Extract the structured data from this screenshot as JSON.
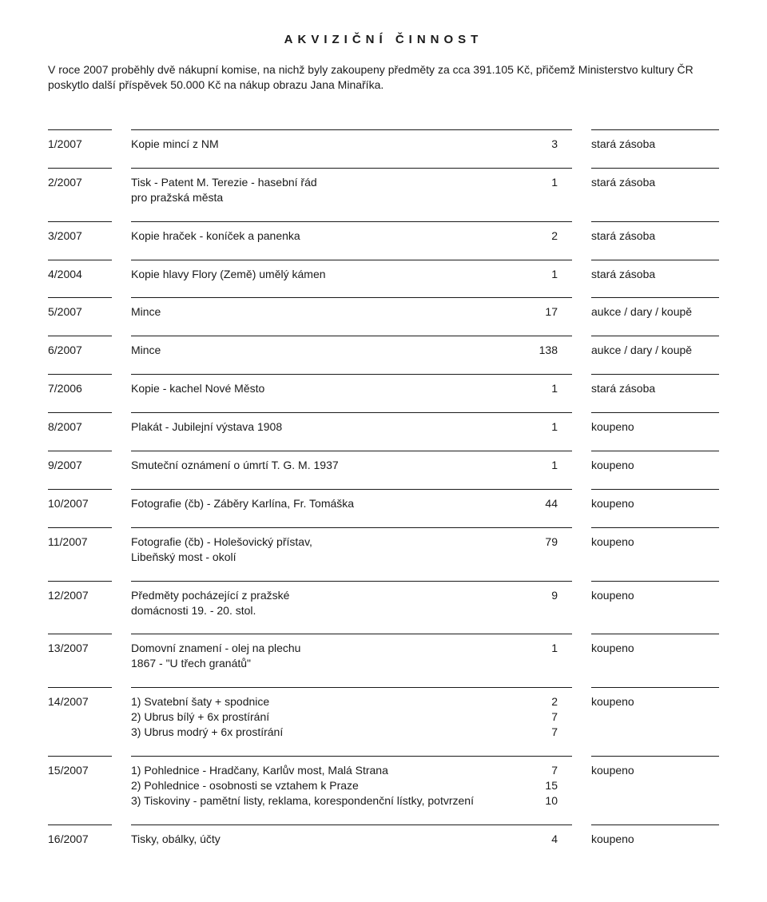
{
  "heading": "AKVIZIČNÍ ČINNOST",
  "intro": "V roce 2007 proběhly dvě nákupní komise, na nichž byly zakoupeny předměty za cca 391.105 Kč, přičemž Ministerstvo kultury ČR poskytlo další příspěvek 50.000 Kč na nákup obrazu Jana Minaříka.",
  "rows": [
    {
      "id": "1/2007",
      "line1": "Kopie mincí z NM",
      "qty1": "3",
      "status": "stará zásoba"
    },
    {
      "id": "2/2007",
      "line1": "Tisk - Patent M. Terezie - hasební řád",
      "qty1": "1",
      "line2": "pro pražská města",
      "status": "stará zásoba"
    },
    {
      "id": "3/2007",
      "line1": "Kopie hraček - koníček a panenka",
      "qty1": "2",
      "status": "stará zásoba"
    },
    {
      "id": "4/2004",
      "line1": "Kopie hlavy Flory (Země) umělý kámen",
      "qty1": "1",
      "status": "stará zásoba"
    },
    {
      "id": "5/2007",
      "line1": "Mince",
      "qty1": "17",
      "status": "aukce / dary / koupě"
    },
    {
      "id": "6/2007",
      "line1": "Mince",
      "qty1": "138",
      "status": "aukce / dary / koupě"
    },
    {
      "id": "7/2006",
      "line1": "Kopie - kachel Nové Město",
      "qty1": "1",
      "status": "stará zásoba"
    },
    {
      "id": "8/2007",
      "line1": "Plakát - Jubilejní výstava 1908",
      "qty1": "1",
      "status": "koupeno"
    },
    {
      "id": "9/2007",
      "line1": "Smuteční oznámení o úmrtí T. G. M. 1937",
      "qty1": "1",
      "status": "koupeno"
    },
    {
      "id": "10/2007",
      "line1": "Fotografie (čb) - Záběry Karlína, Fr. Tomáška",
      "qty1": "44",
      "status": "koupeno"
    },
    {
      "id": "11/2007",
      "line1": "Fotografie (čb) - Holešovický přístav,",
      "qty1": "79",
      "line2": "Libeňský most - okolí",
      "status": "koupeno"
    },
    {
      "id": "12/2007",
      "line1": "Předměty pocházející z pražské",
      "qty1": "9",
      "line2": "domácnosti 19. - 20. stol.",
      "status": "koupeno"
    },
    {
      "id": "13/2007",
      "line1": "Domovní znamení - olej na plechu",
      "qty1": "1",
      "line2": "1867 - \"U třech granátů\"",
      "status": "koupeno"
    },
    {
      "id": "14/2007",
      "line1": "1) Svatební šaty + spodnice",
      "qty1": "2",
      "line2": "2) Ubrus bílý + 6x prostírání",
      "qty2": "7",
      "line3": "3) Ubrus modrý + 6x prostírání",
      "qty3": "7",
      "status": "koupeno"
    },
    {
      "id": "15/2007",
      "line1": "1) Pohlednice - Hradčany, Karlův most, Malá Strana",
      "qty1": "7",
      "line2": "2) Pohlednice - osobnosti se vztahem k Praze",
      "qty2": "15",
      "line3": "3) Tiskoviny - pamětní listy, reklama, korespondenční lístky, potvrzení",
      "qty3": "10",
      "status": "koupeno"
    },
    {
      "id": "16/2007",
      "line1": "Tisky, obálky, účty",
      "qty1": "4",
      "status": "koupeno"
    }
  ]
}
